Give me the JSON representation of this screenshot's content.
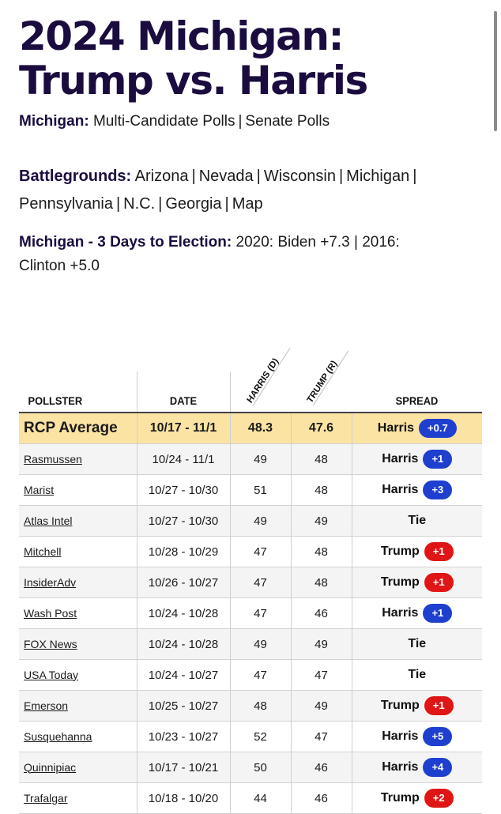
{
  "header": {
    "title_line1": "2024 Michigan:",
    "title_line2": "Trump vs. Harris"
  },
  "michigan_links": {
    "label": "Michigan:",
    "links": [
      "Multi-Candidate Polls",
      "Senate Polls"
    ]
  },
  "battlegrounds": {
    "label": "Battlegrounds:",
    "links_row1": [
      "Arizona",
      "Nevada",
      "Wisconsin",
      "Michigan"
    ],
    "links_row2": [
      "Pennsylvania",
      "N.C.",
      "Georgia",
      "Map"
    ]
  },
  "election_info": {
    "label": "Michigan - 3 Days to Election:",
    "text_line1": "2020: Biden +7.3 | 2016:",
    "text_line2": "Clinton +5.0"
  },
  "table": {
    "headers": {
      "pollster": "POLLSTER",
      "date": "DATE",
      "harris": "HARRIS (D)",
      "trump": "TRUMP (R)",
      "spread": "SPREAD"
    },
    "average": {
      "pollster": "RCP Average",
      "date": "10/17 - 11/1",
      "harris": "48.3",
      "trump": "47.6",
      "leader": "Harris",
      "margin": "+0.7",
      "color": "#1f3fcf"
    },
    "rows": [
      {
        "pollster": "Rasmussen",
        "date": "10/24 - 11/1",
        "harris": "49",
        "trump": "48",
        "leader": "Harris",
        "margin": "+1",
        "party": "blue"
      },
      {
        "pollster": "Marist",
        "date": "10/27 - 10/30",
        "harris": "51",
        "trump": "48",
        "leader": "Harris",
        "margin": "+3",
        "party": "blue"
      },
      {
        "pollster": "Atlas Intel",
        "date": "10/27 - 10/30",
        "harris": "49",
        "trump": "49",
        "leader": "Tie",
        "margin": "",
        "party": "empty"
      },
      {
        "pollster": "Mitchell",
        "date": "10/28 - 10/29",
        "harris": "47",
        "trump": "48",
        "leader": "Trump",
        "margin": "+1",
        "party": "red"
      },
      {
        "pollster": "InsiderAdv",
        "date": "10/26 - 10/27",
        "harris": "47",
        "trump": "48",
        "leader": "Trump",
        "margin": "+1",
        "party": "red"
      },
      {
        "pollster": "Wash Post",
        "date": "10/24 - 10/28",
        "harris": "47",
        "trump": "46",
        "leader": "Harris",
        "margin": "+1",
        "party": "blue"
      },
      {
        "pollster": "FOX News",
        "date": "10/24 - 10/28",
        "harris": "49",
        "trump": "49",
        "leader": "Tie",
        "margin": "",
        "party": "empty"
      },
      {
        "pollster": "USA Today",
        "date": "10/24 - 10/27",
        "harris": "47",
        "trump": "47",
        "leader": "Tie",
        "margin": "",
        "party": "empty"
      },
      {
        "pollster": "Emerson",
        "date": "10/25 - 10/27",
        "harris": "48",
        "trump": "49",
        "leader": "Trump",
        "margin": "+1",
        "party": "red"
      },
      {
        "pollster": "Susquehanna",
        "date": "10/23 - 10/27",
        "harris": "52",
        "trump": "47",
        "leader": "Harris",
        "margin": "+5",
        "party": "blue"
      },
      {
        "pollster": "Quinnipiac",
        "date": "10/17 - 10/21",
        "harris": "50",
        "trump": "46",
        "leader": "Harris",
        "margin": "+4",
        "party": "blue"
      },
      {
        "pollster": "Trafalgar",
        "date": "10/18 - 10/20",
        "harris": "44",
        "trump": "46",
        "leader": "Trump",
        "margin": "+2",
        "party": "red"
      }
    ]
  }
}
